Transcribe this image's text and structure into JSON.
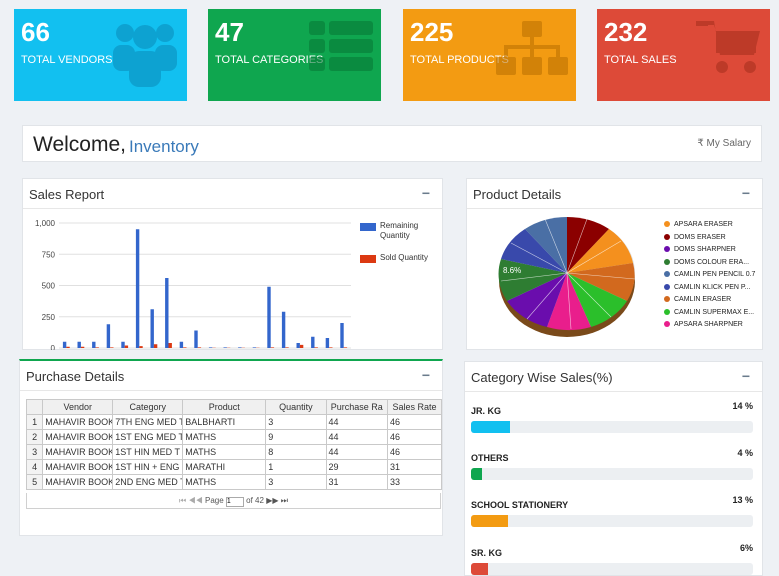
{
  "stats": [
    {
      "value": "66",
      "label": "TOTAL VENDORS",
      "color": "#12c0f0",
      "icon": "users-icon"
    },
    {
      "value": "47",
      "label": "TOTAL CATEGORIES",
      "color": "#0fa64f",
      "icon": "list-icon"
    },
    {
      "value": "225",
      "label": "TOTAL PRODUCTS",
      "color": "#f39b12",
      "icon": "sitemap-icon"
    },
    {
      "value": "232",
      "label": "TOTAL SALES",
      "color": "#dd4a38",
      "icon": "cart-icon"
    }
  ],
  "welcome": {
    "greeting": "Welcome,",
    "name": "Inventory",
    "salary_link": "₹ My Salary"
  },
  "sales_report": {
    "title": "Sales Report",
    "minimize": "−",
    "legend": [
      {
        "label": "Remaining Quantity",
        "color": "#3366cc"
      },
      {
        "label": "Sold Quantity",
        "color": "#dc3912"
      }
    ]
  },
  "chart_data": {
    "type": "bar",
    "ylim": [
      0,
      1000
    ],
    "yticks": [
      "0",
      "250",
      "500",
      "750",
      "1,000"
    ],
    "series": [
      {
        "name": "Remaining Quantity",
        "values": [
          50,
          50,
          50,
          190,
          50,
          950,
          310,
          560,
          50,
          140,
          5,
          5,
          5,
          5,
          490,
          290,
          40,
          90,
          80,
          200
        ]
      },
      {
        "name": "Sold Quantity",
        "values": [
          10,
          10,
          5,
          5,
          20,
          15,
          30,
          40,
          5,
          5,
          2,
          2,
          2,
          2,
          5,
          5,
          25,
          5,
          5,
          5
        ]
      }
    ]
  },
  "product_details": {
    "title": "Product Details",
    "minimize": "−",
    "pie_label": "8.6%",
    "legend": [
      {
        "label": "APSARA ERASER",
        "color": "#f4901e"
      },
      {
        "label": "DOMS ERASER",
        "color": "#8b0000"
      },
      {
        "label": "DOMS SHARPNER",
        "color": "#6a0dad"
      },
      {
        "label": "DOMS COLOUR ERA...",
        "color": "#2e7d32"
      },
      {
        "label": "CAMLIN PEN PENCIL 0.7",
        "color": "#4a6fa5"
      },
      {
        "label": "CAMLIN KLICK PEN P...",
        "color": "#3949ab"
      },
      {
        "label": "CAMLIN ERASER",
        "color": "#d2691e"
      },
      {
        "label": "CAMLIN SUPERMAX E...",
        "color": "#2bbf2b"
      },
      {
        "label": "APSARA SHARPNER",
        "color": "#e91e8c"
      }
    ]
  },
  "purchase_details": {
    "title": "Purchase Details",
    "minimize": "−",
    "columns": [
      "Vendor",
      "Category",
      "Product",
      "Quantity",
      "Purchase Ra",
      "Sales Rate"
    ],
    "rows": [
      {
        "n": "1",
        "cells": [
          "MAHAVIR BOOK",
          "7TH ENG MED T",
          "BALBHARTI",
          "3",
          "44",
          "46"
        ]
      },
      {
        "n": "2",
        "cells": [
          "MAHAVIR BOOK",
          "1ST ENG MED T",
          "MATHS",
          "9",
          "44",
          "46"
        ]
      },
      {
        "n": "3",
        "cells": [
          "MAHAVIR BOOK",
          "1ST HIN MED T",
          "MATHS",
          "8",
          "44",
          "46"
        ]
      },
      {
        "n": "4",
        "cells": [
          "MAHAVIR BOOK",
          "1ST HIN + ENG",
          "MARATHI",
          "1",
          "29",
          "31"
        ]
      },
      {
        "n": "5",
        "cells": [
          "MAHAVIR BOOK",
          "2ND ENG MED T",
          "MATHS",
          "3",
          "31",
          "33"
        ]
      }
    ],
    "pager": {
      "first": "⏮",
      "prev": "◀◀",
      "page_label": "Page",
      "page_value": "1",
      "of_label": "of 42",
      "next": "▶▶",
      "last": "⏭"
    }
  },
  "category_sales": {
    "title": "Category Wise Sales(%)",
    "minimize": "−",
    "items": [
      {
        "label": "JR. KG",
        "pct_text": "14 %",
        "pct": 14,
        "color": "#12c0f0"
      },
      {
        "label": "OTHERS",
        "pct_text": "4 %",
        "pct": 4,
        "color": "#0fa64f"
      },
      {
        "label": "SCHOOL STATIONERY",
        "pct_text": "13 %",
        "pct": 13,
        "color": "#f39b12"
      },
      {
        "label": "SR. KG",
        "pct_text": "6%",
        "pct": 6,
        "color": "#dd4a38"
      }
    ]
  }
}
